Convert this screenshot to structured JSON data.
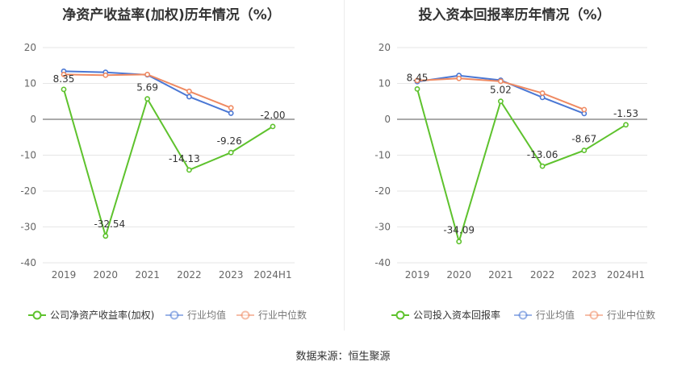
{
  "chart_data": [
    {
      "type": "line",
      "title": "净资产收益率(加权)历年情况（%）",
      "categories": [
        "2019",
        "2020",
        "2021",
        "2022",
        "2023",
        "2024H1"
      ],
      "ylim": [
        -40,
        20
      ],
      "yticks": [
        20,
        10,
        0,
        -10,
        -20,
        -30,
        -40
      ],
      "grid": true,
      "legend_position": "bottom",
      "series": [
        {
          "name": "公司净资产收益率(加权)",
          "color": "#5ec22d",
          "values": [
            8.35,
            -32.54,
            5.69,
            -14.13,
            -9.26,
            -2.0
          ],
          "labels": [
            "8.35",
            "-32.54",
            "5.69",
            "-14.13",
            "-9.26",
            "-2.00"
          ]
        },
        {
          "name": "行业均值",
          "color": "#4a77d4",
          "values": [
            13.4,
            13.1,
            12.4,
            6.3,
            1.7,
            null
          ]
        },
        {
          "name": "行业中位数",
          "color": "#ef8a62",
          "values": [
            12.5,
            12.3,
            12.5,
            7.8,
            3.2,
            null
          ]
        }
      ]
    },
    {
      "type": "line",
      "title": "投入资本回报率历年情况（%）",
      "categories": [
        "2019",
        "2020",
        "2021",
        "2022",
        "2023",
        "2024H1"
      ],
      "ylim": [
        -40,
        20
      ],
      "yticks": [
        20,
        10,
        0,
        -10,
        -20,
        -30,
        -40
      ],
      "grid": true,
      "legend_position": "bottom",
      "series": [
        {
          "name": "公司投入资本回报率",
          "color": "#5ec22d",
          "values": [
            8.45,
            -34.09,
            5.02,
            -13.06,
            -8.67,
            -1.53
          ],
          "labels": [
            "8.45",
            "-34.09",
            "5.02",
            "-13.06",
            "-8.67",
            "-1.53"
          ]
        },
        {
          "name": "行业均值",
          "color": "#4a77d4",
          "values": [
            10.5,
            12.2,
            10.9,
            6.1,
            1.6,
            null
          ]
        },
        {
          "name": "行业中位数",
          "color": "#ef8a62",
          "values": [
            10.8,
            11.4,
            10.6,
            7.3,
            2.7,
            null
          ]
        }
      ]
    }
  ],
  "source": "数据来源：恒生聚源"
}
